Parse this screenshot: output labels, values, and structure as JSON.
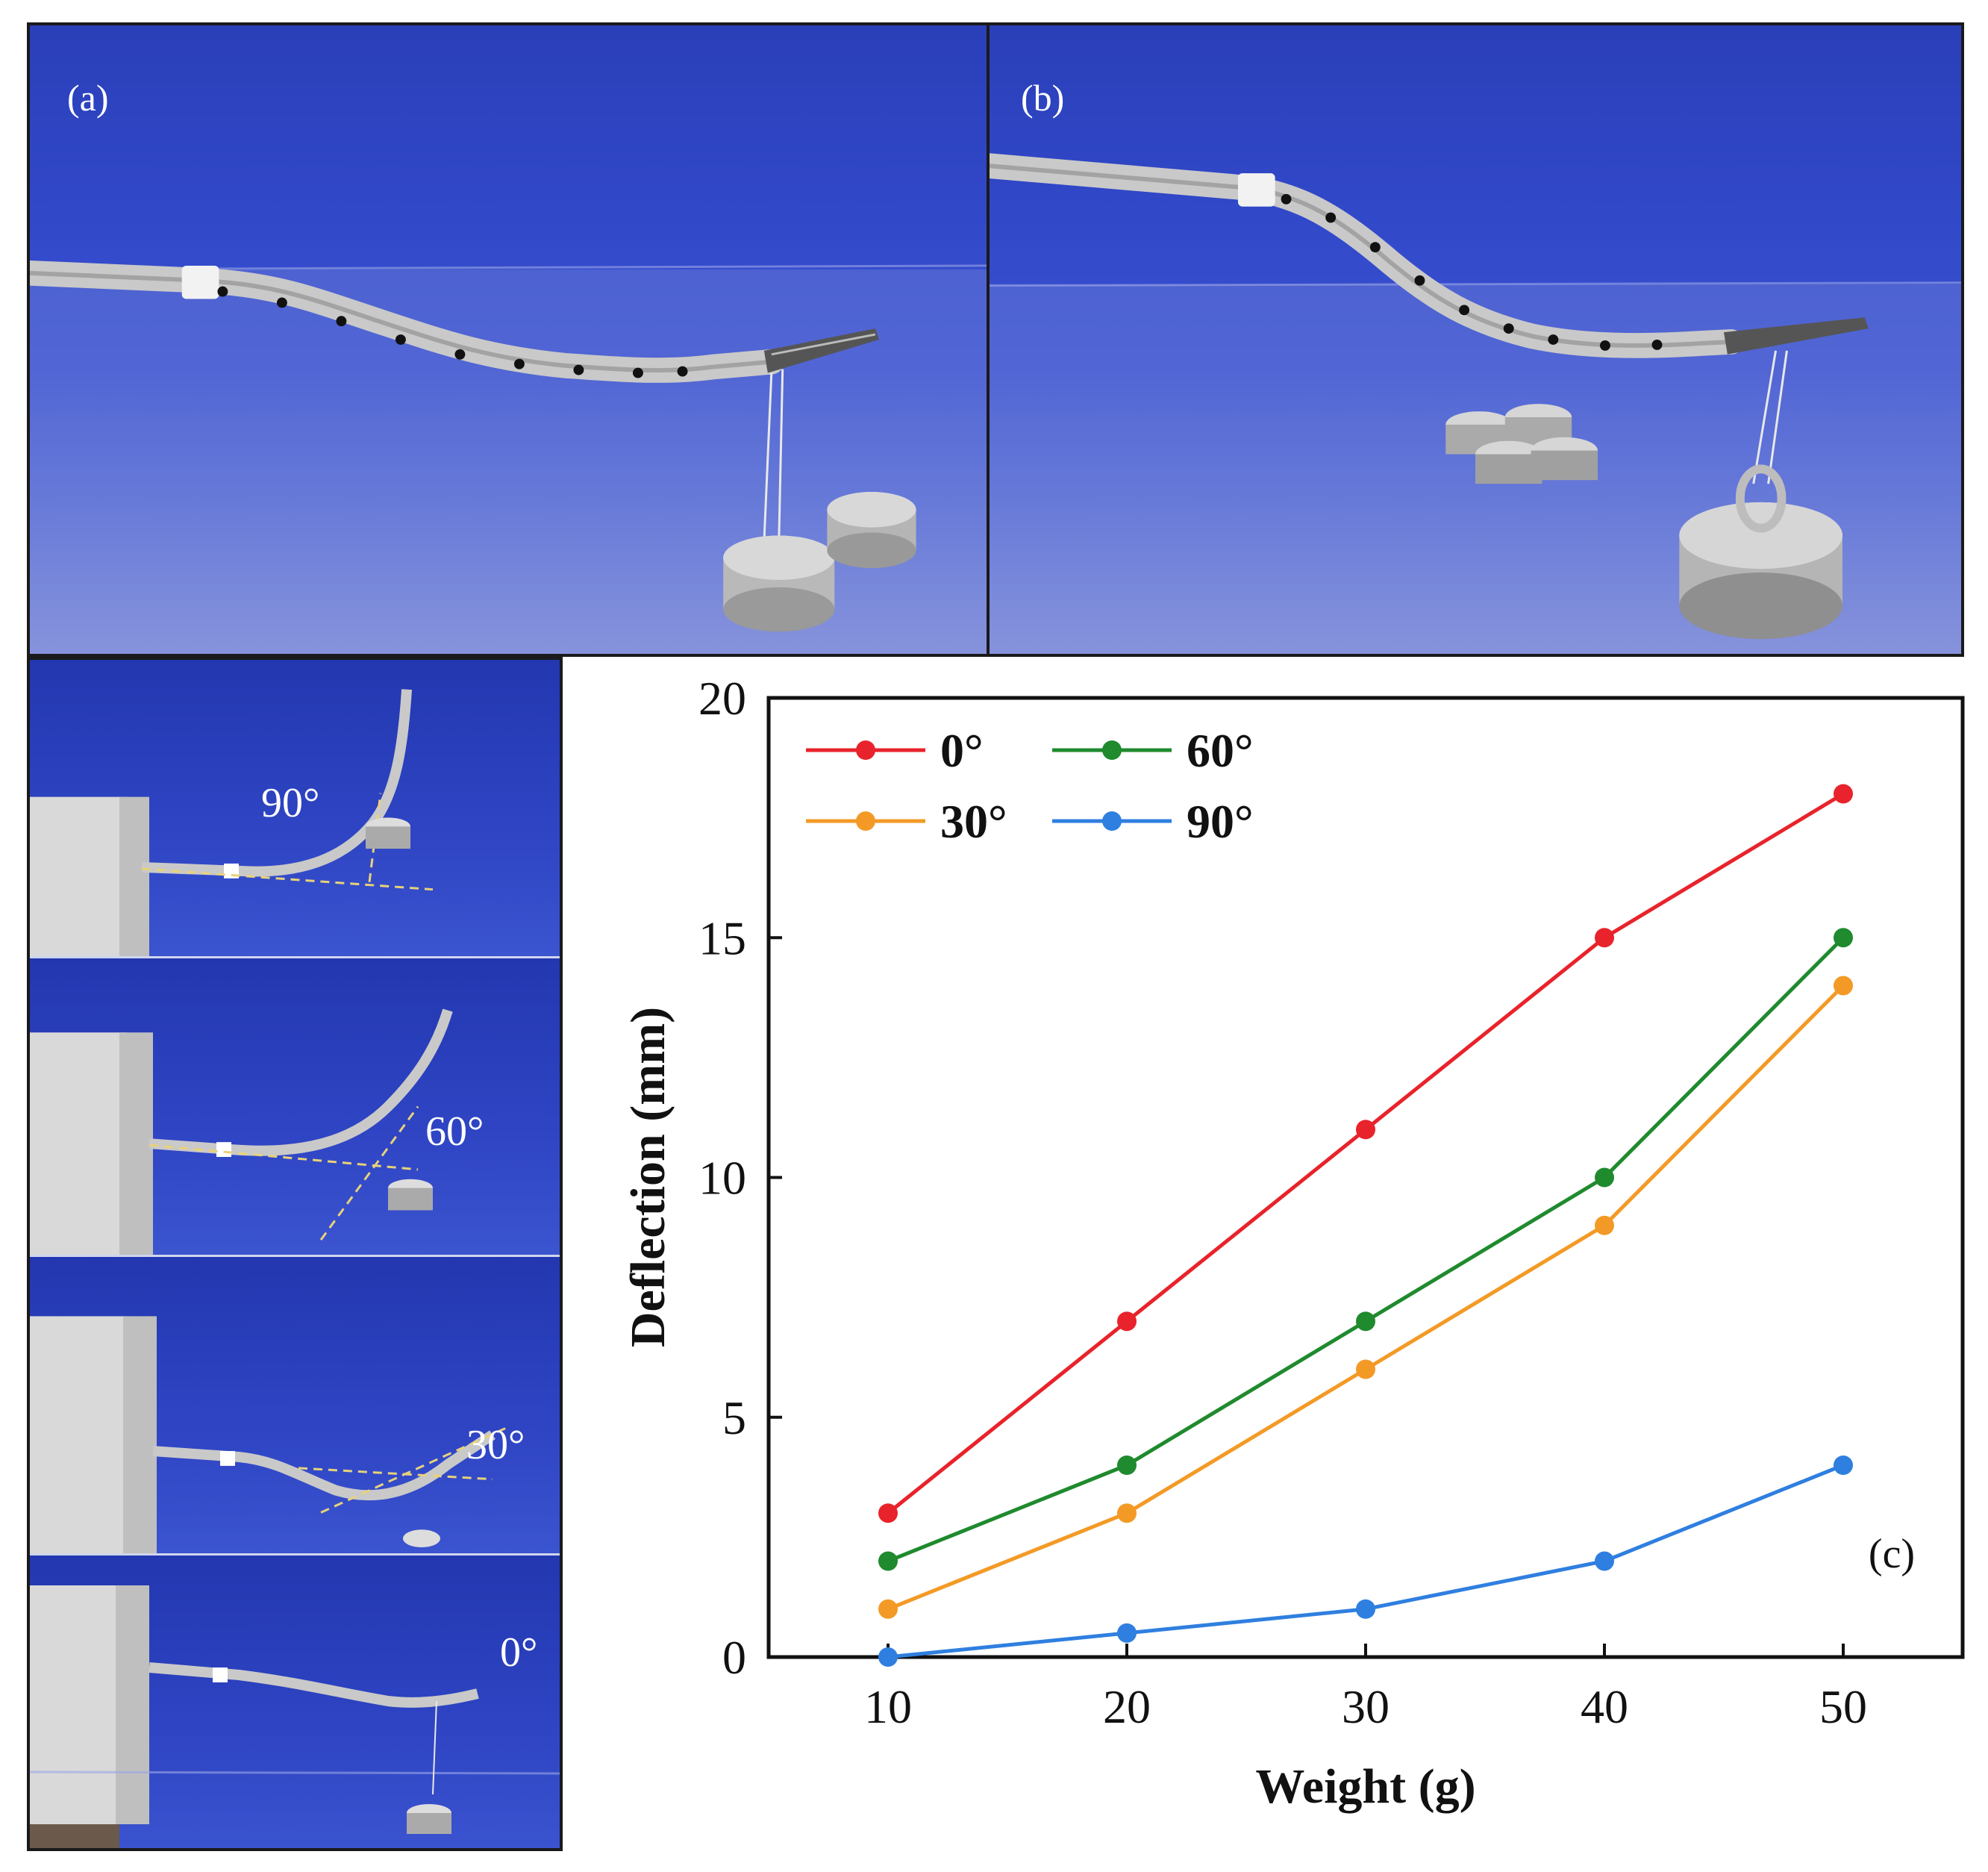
{
  "panels": {
    "a": {
      "label": "(a)"
    },
    "b": {
      "label": "(b)"
    }
  },
  "angle_photos": [
    {
      "label": "90°"
    },
    {
      "label": "60°"
    },
    {
      "label": "30°"
    },
    {
      "label": "0°"
    }
  ],
  "chart_data": {
    "type": "line",
    "panel_label": "(c)",
    "xlabel": "Weight (g)",
    "ylabel": "Deflection (mm)",
    "x": [
      10,
      20,
      30,
      40,
      50
    ],
    "xticks": [
      10,
      20,
      30,
      40,
      50
    ],
    "yticks": [
      0,
      5,
      10,
      15,
      20
    ],
    "xlim": [
      5,
      55
    ],
    "ylim": [
      0,
      20
    ],
    "legend_position": "top-left",
    "series": [
      {
        "name": "0°",
        "color": "#e8232b",
        "values": [
          3,
          7,
          11,
          15,
          18
        ]
      },
      {
        "name": "30°",
        "color": "#f39a26",
        "values": [
          1,
          3,
          6,
          9,
          14
        ]
      },
      {
        "name": "60°",
        "color": "#1f8a2e",
        "values": [
          2,
          4,
          7,
          10,
          15
        ]
      },
      {
        "name": "90°",
        "color": "#2f7fe0",
        "values": [
          0,
          0.5,
          1,
          2,
          4
        ]
      }
    ]
  }
}
